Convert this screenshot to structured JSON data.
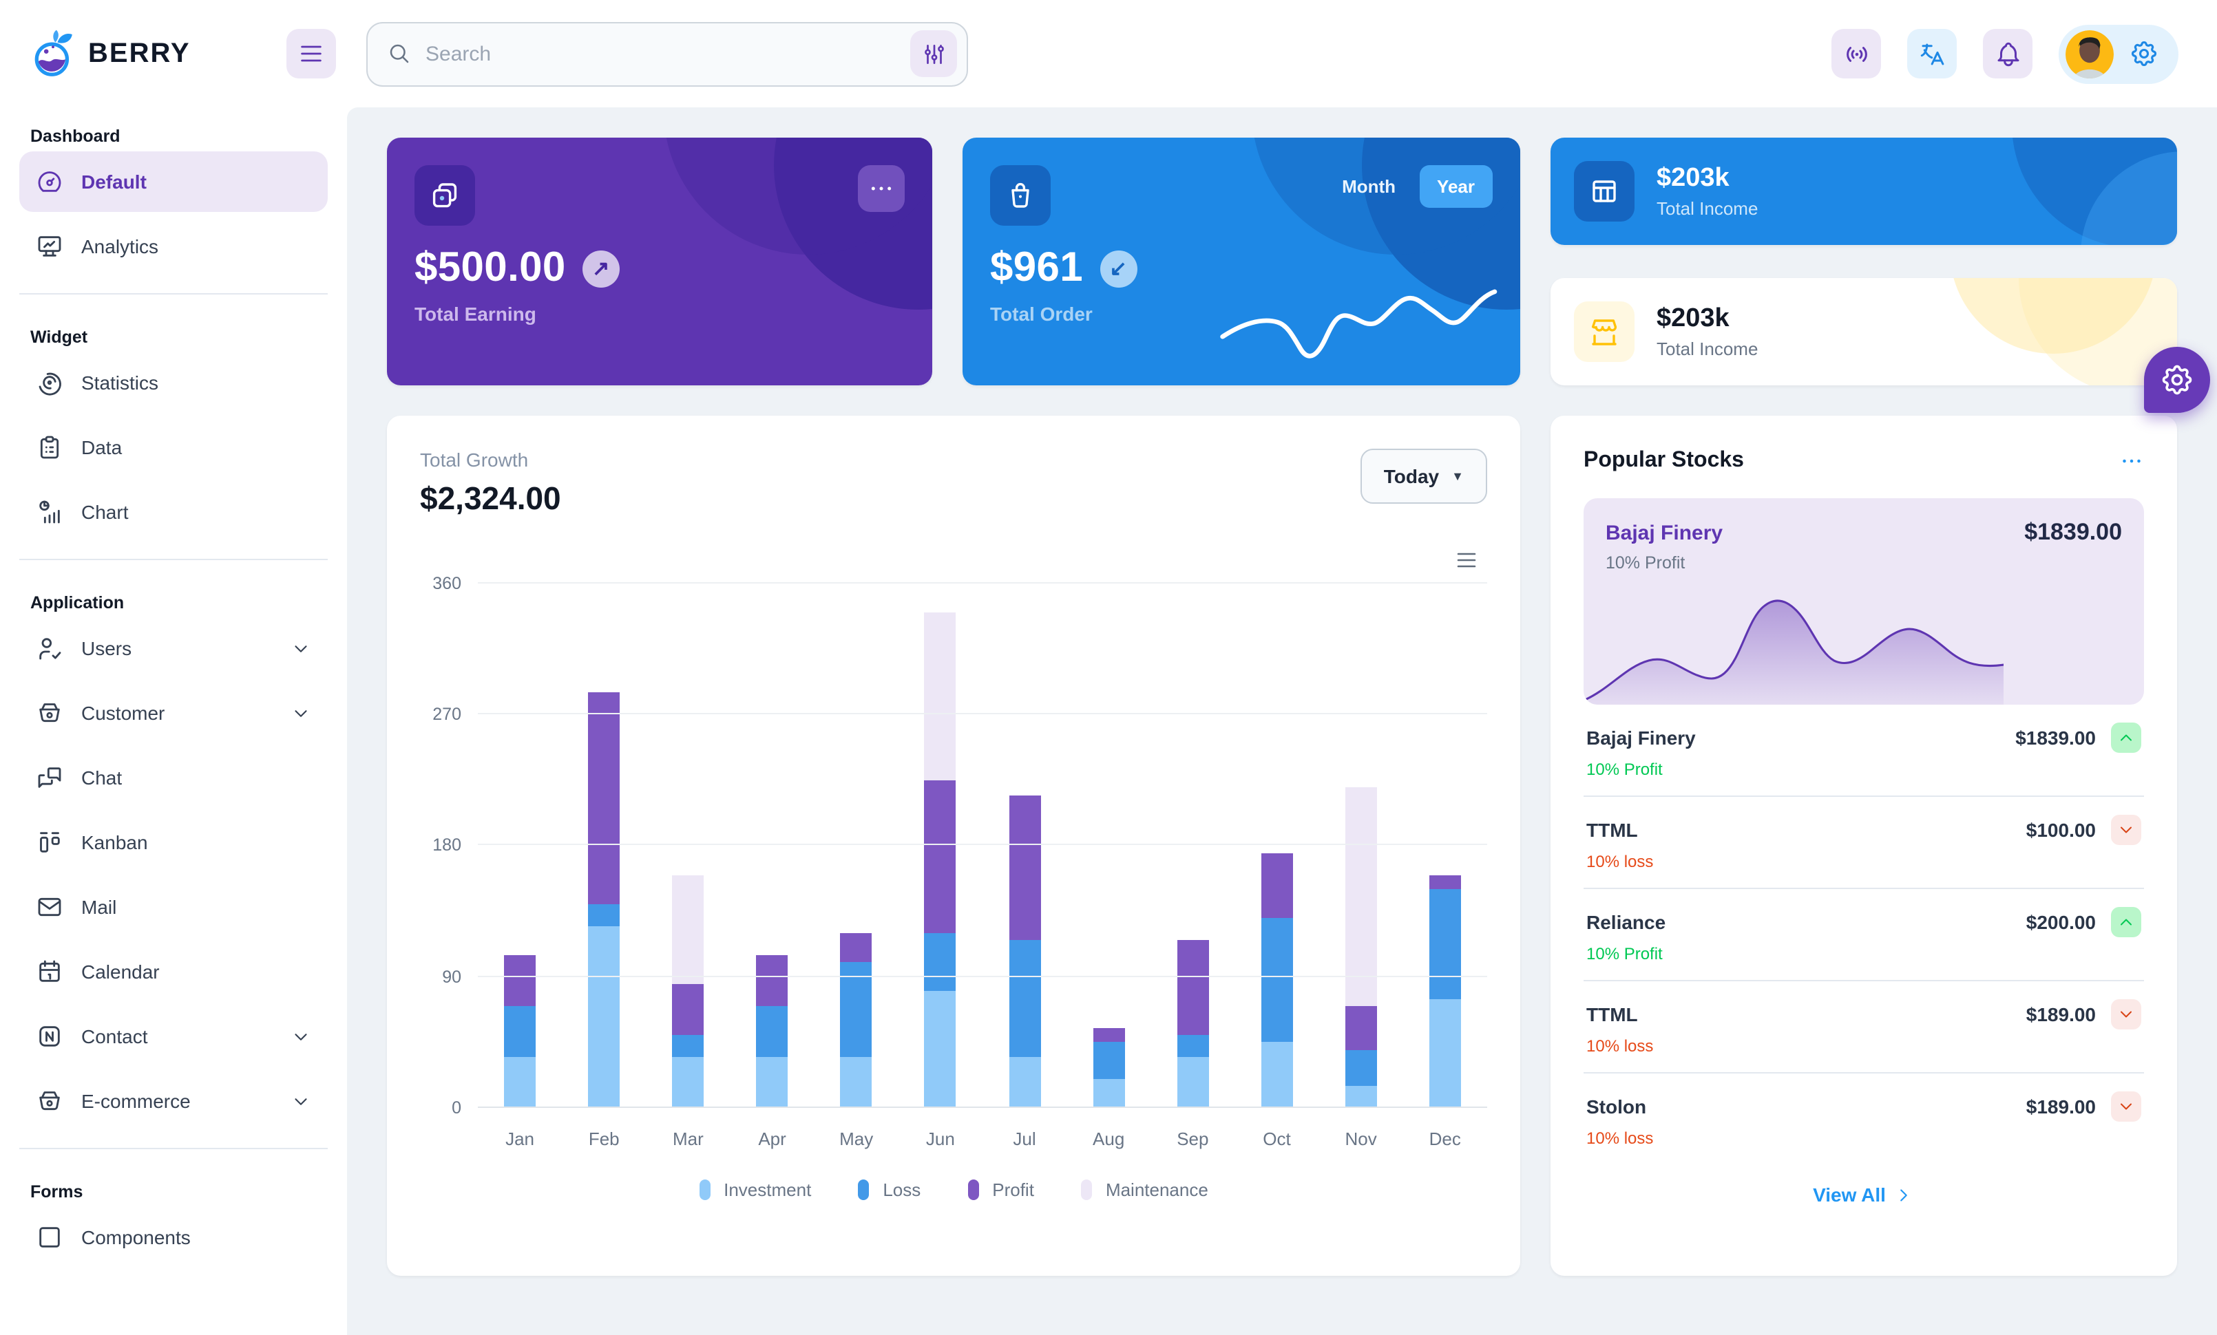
{
  "app": {
    "name": "BERRY"
  },
  "header": {
    "search": {
      "placeholder": "Search"
    }
  },
  "sidebar": {
    "sections": [
      {
        "label": "Dashboard",
        "items": [
          {
            "label": "Default",
            "icon": "gauge",
            "active": true
          },
          {
            "label": "Analytics",
            "icon": "analytics"
          }
        ]
      },
      {
        "label": "Widget",
        "items": [
          {
            "label": "Statistics",
            "icon": "statistics"
          },
          {
            "label": "Data",
            "icon": "data"
          },
          {
            "label": "Chart",
            "icon": "chart"
          }
        ]
      },
      {
        "label": "Application",
        "items": [
          {
            "label": "Users",
            "icon": "users",
            "chevron": true
          },
          {
            "label": "Customer",
            "icon": "basket",
            "chevron": true
          },
          {
            "label": "Chat",
            "icon": "chat"
          },
          {
            "label": "Kanban",
            "icon": "kanban"
          },
          {
            "label": "Mail",
            "icon": "mail"
          },
          {
            "label": "Calendar",
            "icon": "calendar"
          },
          {
            "label": "Contact",
            "icon": "contact",
            "chevron": true
          },
          {
            "label": "E-commerce",
            "icon": "basket",
            "chevron": true
          }
        ]
      },
      {
        "label": "Forms",
        "items": [
          {
            "label": "Components",
            "icon": "components"
          }
        ]
      }
    ]
  },
  "cards": {
    "earning": {
      "value": "$500.00",
      "label": "Total Earning",
      "badge_arrow": "↗"
    },
    "order": {
      "value": "$961",
      "label": "Total Order",
      "toggle": [
        "Month",
        "Year"
      ],
      "selected": "Year",
      "badge_arrow": "↙"
    },
    "income_blue": {
      "value": "$203k",
      "label": "Total Income"
    },
    "income_light": {
      "value": "$203k",
      "label": "Total Income"
    }
  },
  "growth": {
    "title": "Total Growth",
    "value": "$2,324.00",
    "period": "Today",
    "chart_data": {
      "type": "bar",
      "stacked": true,
      "categories": [
        "Jan",
        "Feb",
        "Mar",
        "Apr",
        "May",
        "Jun",
        "Jul",
        "Aug",
        "Sep",
        "Oct",
        "Nov",
        "Dec"
      ],
      "series": [
        {
          "name": "Investment",
          "color": "#90caf9",
          "values": [
            35,
            125,
            35,
            35,
            35,
            80,
            35,
            20,
            35,
            45,
            15,
            75
          ]
        },
        {
          "name": "Loss",
          "color": "#4299e8",
          "values": [
            35,
            15,
            15,
            35,
            65,
            40,
            80,
            25,
            15,
            85,
            25,
            75
          ]
        },
        {
          "name": "Profit",
          "color": "#7e57c2",
          "values": [
            35,
            145,
            35,
            35,
            20,
            105,
            100,
            10,
            65,
            45,
            30,
            10
          ]
        },
        {
          "name": "Maintenance",
          "color": "#ede7f6",
          "values": [
            0,
            0,
            75,
            0,
            0,
            115,
            0,
            0,
            0,
            0,
            150,
            0
          ]
        }
      ],
      "ylim": [
        0,
        360
      ],
      "yticks": [
        0,
        90,
        180,
        270,
        360
      ],
      "grid": true,
      "legend_position": "bottom"
    }
  },
  "stocks": {
    "title": "Popular Stocks",
    "featured": {
      "name": "Bajaj Finery",
      "price": "$1839.00",
      "sub": "10% Profit"
    },
    "rows": [
      {
        "name": "Bajaj Finery",
        "price": "$1839.00",
        "sub": "10% Profit",
        "direction": "up"
      },
      {
        "name": "TTML",
        "price": "$100.00",
        "sub": "10% loss",
        "direction": "down"
      },
      {
        "name": "Reliance",
        "price": "$200.00",
        "sub": "10% Profit",
        "direction": "up"
      },
      {
        "name": "TTML",
        "price": "$189.00",
        "sub": "10% loss",
        "direction": "down"
      },
      {
        "name": "Stolon",
        "price": "$189.00",
        "sub": "10% loss",
        "direction": "down"
      }
    ],
    "view_all": "View All"
  },
  "colors": {
    "primary": "#2196f3",
    "secondary": "#673ab7",
    "card_purple": "#5e35b1",
    "card_blue": "#1e88e5",
    "success": "#00c853",
    "error": "#d84315",
    "warning": "#ffc107",
    "background": "#eef2f6"
  }
}
